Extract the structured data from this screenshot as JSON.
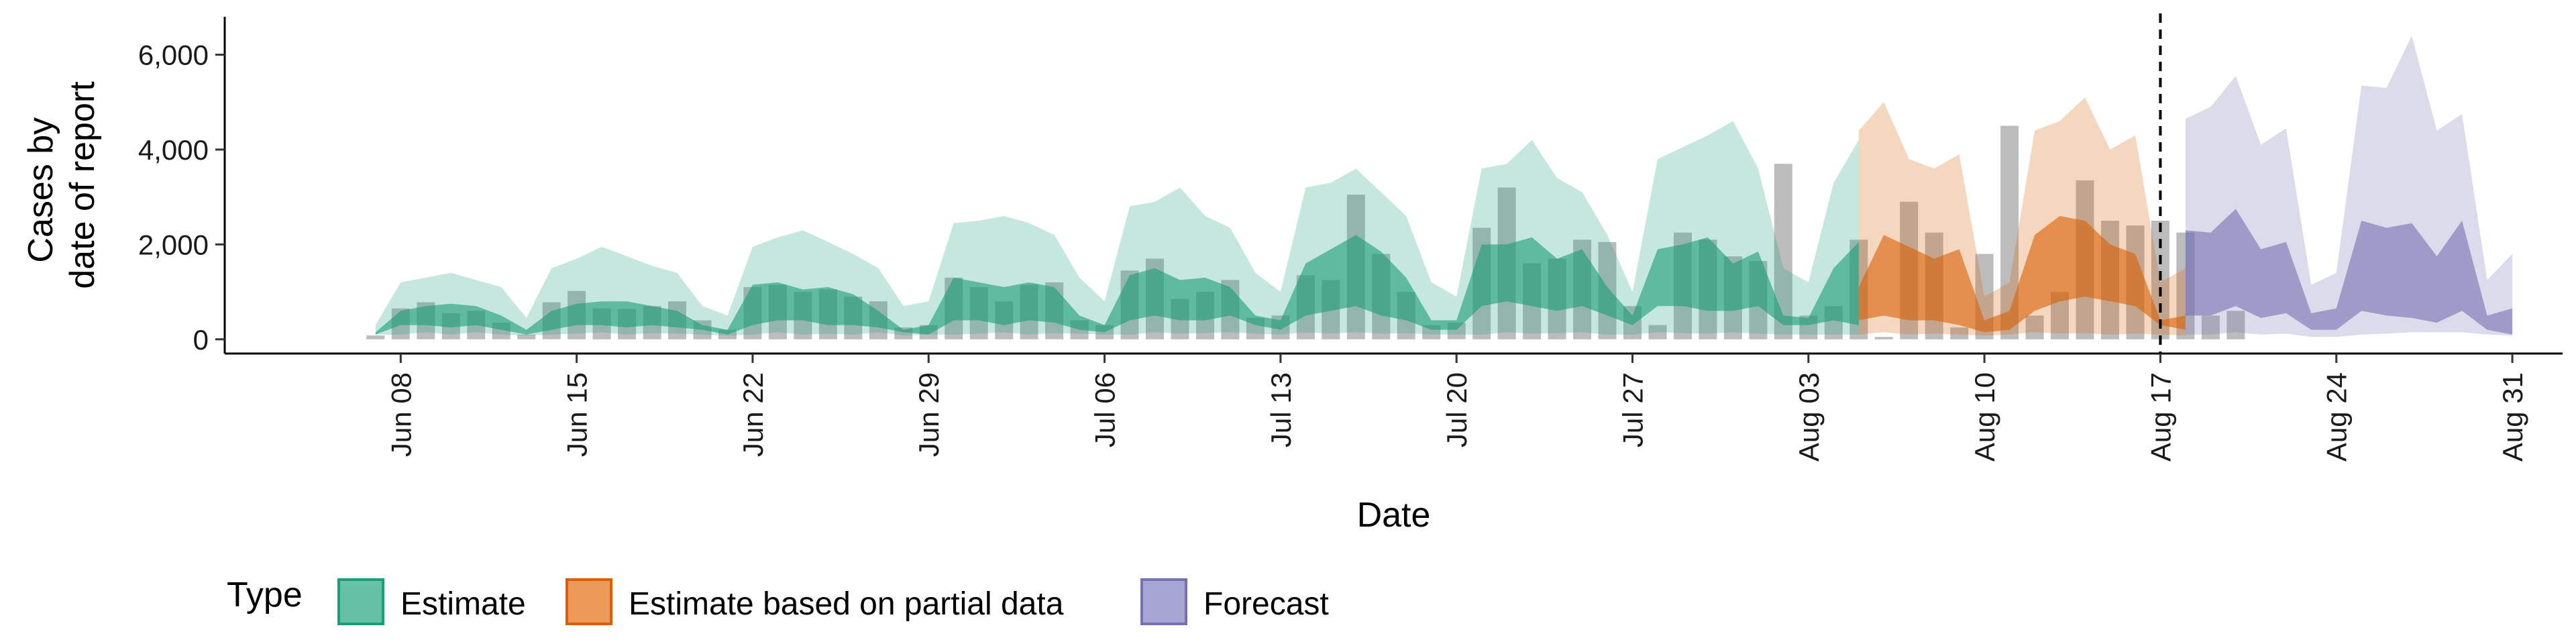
{
  "chart_data": {
    "type": "area",
    "xlabel": "Date",
    "ylabel_lines": [
      "Cases by",
      "date of report"
    ],
    "ylim": [
      -300,
      6800
    ],
    "xlim": [
      "2020-06-01",
      "2020-09-02"
    ],
    "y_ticks": [
      0,
      2000,
      4000,
      6000
    ],
    "y_tick_labels": [
      "0",
      "2,000",
      "4,000",
      "6,000"
    ],
    "x_ticks": [
      "2020-06-08",
      "2020-06-15",
      "2020-06-22",
      "2020-06-29",
      "2020-07-06",
      "2020-07-13",
      "2020-07-20",
      "2020-07-27",
      "2020-08-03",
      "2020-08-10",
      "2020-08-17",
      "2020-08-24",
      "2020-08-31"
    ],
    "x_tick_labels": [
      "Jun 08",
      "Jun 15",
      "Jun 22",
      "Jun 29",
      "Jul 06",
      "Jul 13",
      "Jul 20",
      "Jul 27",
      "Aug 03",
      "Aug 10",
      "Aug 17",
      "Aug 24",
      "Aug 31"
    ],
    "vline_date": "2020-08-17",
    "legend": {
      "title": "Type",
      "position": "bottom",
      "entries": [
        {
          "label": "Estimate",
          "fill": "#66c2a5",
          "stroke": "#1b9e77"
        },
        {
          "label": "Estimate based on partial data",
          "fill": "#eb9a5a",
          "stroke": "#d95f02"
        },
        {
          "label": "Forecast",
          "fill": "#a7a5d1",
          "stroke": "#7570b3"
        }
      ]
    },
    "colors": {
      "estimate": "#1b9e77",
      "partial": "#d95f02",
      "forecast": "#7570b3",
      "bars": "#a9a9a9"
    },
    "bars": {
      "start": "2020-06-07",
      "values": [
        80,
        650,
        780,
        550,
        600,
        350,
        100,
        780,
        1020,
        650,
        640,
        700,
        800,
        400,
        200,
        1100,
        1150,
        1000,
        1050,
        900,
        800,
        250,
        300,
        1300,
        1100,
        800,
        1150,
        1200,
        400,
        300,
        1450,
        1700,
        850,
        1000,
        1250,
        450,
        500,
        1350,
        1250,
        3050,
        1800,
        1000,
        300,
        350,
        2350,
        3200,
        1600,
        1700,
        2100,
        2050,
        700,
        300,
        2250,
        2100,
        1750,
        1650,
        3700,
        500,
        700,
        2100,
        50,
        2900,
        2250,
        250,
        1800,
        4500,
        500,
        1000,
        3350,
        2500,
        2400,
        2500,
        2250,
        500,
        600
      ]
    },
    "series": [
      {
        "name": "Estimate",
        "start": "2020-06-07",
        "lo90": [
          100,
          100,
          150,
          100,
          150,
          100,
          80,
          100,
          120,
          150,
          100,
          130,
          120,
          100,
          80,
          100,
          150,
          100,
          120,
          100,
          150,
          80,
          100,
          100,
          120,
          150,
          100,
          130,
          120,
          100,
          100,
          150,
          120,
          130,
          150,
          120,
          100,
          150,
          120,
          150,
          120,
          130,
          100,
          100,
          100,
          150,
          120,
          130,
          150,
          100,
          100,
          150,
          130,
          120,
          150,
          120,
          100,
          100,
          100,
          100
        ],
        "lo50": [
          100,
          300,
          300,
          250,
          300,
          200,
          100,
          200,
          300,
          300,
          250,
          300,
          250,
          200,
          100,
          300,
          400,
          400,
          300,
          300,
          250,
          150,
          100,
          400,
          400,
          300,
          400,
          350,
          200,
          150,
          400,
          500,
          400,
          400,
          500,
          300,
          200,
          500,
          600,
          700,
          500,
          400,
          200,
          200,
          700,
          800,
          700,
          600,
          700,
          500,
          300,
          700,
          700,
          600,
          600,
          700,
          300,
          300,
          400,
          300
        ],
        "hi50": [
          150,
          600,
          700,
          750,
          700,
          500,
          200,
          600,
          750,
          800,
          800,
          700,
          600,
          300,
          200,
          1150,
          1200,
          1050,
          1100,
          950,
          600,
          200,
          300,
          1300,
          1200,
          1100,
          1200,
          1100,
          500,
          300,
          1350,
          1500,
          1250,
          1300,
          1100,
          500,
          400,
          1600,
          1900,
          2200,
          1850,
          1300,
          400,
          400,
          2000,
          2000,
          2150,
          1700,
          1900,
          1100,
          500,
          1900,
          2000,
          2150,
          1600,
          1850,
          500,
          450,
          1500,
          2050
        ],
        "hi90": [
          300,
          1200,
          1300,
          1400,
          1250,
          1100,
          450,
          1500,
          1700,
          1950,
          1750,
          1550,
          1400,
          700,
          500,
          1950,
          2150,
          2300,
          2050,
          1800,
          1500,
          700,
          800,
          2450,
          2500,
          2600,
          2450,
          2200,
          1300,
          800,
          2800,
          2900,
          3200,
          2600,
          2350,
          1400,
          1000,
          3200,
          3300,
          3600,
          3100,
          2600,
          1200,
          900,
          3600,
          3700,
          4200,
          3400,
          3100,
          2200,
          1000,
          3800,
          4050,
          4300,
          4600,
          3600,
          1500,
          1200,
          3300,
          4200
        ]
      },
      {
        "name": "Estimate based on partial data",
        "start": "2020-08-05",
        "lo90": [
          100,
          150,
          100,
          120,
          100,
          80,
          100,
          150,
          120,
          130,
          100,
          120,
          100,
          80
        ],
        "lo50": [
          400,
          500,
          400,
          400,
          300,
          150,
          200,
          600,
          800,
          900,
          800,
          700,
          300,
          200
        ],
        "hi50": [
          1100,
          2200,
          1950,
          1700,
          1900,
          400,
          600,
          2200,
          2600,
          2500,
          2000,
          1800,
          400,
          500
        ],
        "hi90": [
          4400,
          5000,
          3800,
          3600,
          3900,
          900,
          1200,
          4400,
          4600,
          5100,
          4000,
          4300,
          1200,
          1500
        ]
      },
      {
        "name": "Forecast",
        "start": "2020-08-18",
        "lo90": [
          100,
          100,
          150,
          100,
          120,
          50,
          50,
          100,
          120,
          150,
          150,
          150,
          100,
          80
        ],
        "lo50": [
          500,
          500,
          700,
          450,
          550,
          200,
          200,
          600,
          500,
          450,
          350,
          600,
          200,
          100
        ],
        "hi50": [
          2300,
          2250,
          2750,
          1900,
          2050,
          550,
          650,
          2500,
          2350,
          2450,
          1750,
          2500,
          500,
          650
        ],
        "hi90": [
          4650,
          4900,
          5550,
          4100,
          4450,
          1150,
          1400,
          5350,
          5300,
          6400,
          4400,
          4750,
          1250,
          1800
        ]
      }
    ]
  }
}
